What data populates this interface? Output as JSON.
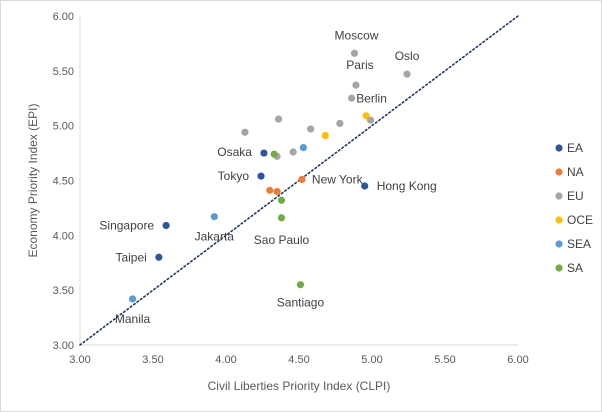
{
  "chart_data": {
    "type": "scatter",
    "xlabel": "Civil Liberties Priority Index (CLPI)",
    "ylabel": "Economy Priority Index (EPI)",
    "xlim": [
      3.0,
      6.0
    ],
    "ylim": [
      3.0,
      6.0
    ],
    "x_ticks": [
      "3.00",
      "3.50",
      "4.00",
      "4.50",
      "5.00",
      "5.50",
      "6.00"
    ],
    "y_ticks": [
      "3.00",
      "3.50",
      "4.00",
      "4.50",
      "5.00",
      "5.50",
      "6.00"
    ],
    "diagonal": {
      "from": [
        3.0,
        3.0
      ],
      "to": [
        6.0,
        6.0
      ],
      "style": "dotted",
      "color": "#1f3864"
    },
    "grid": false,
    "legend_position": "right",
    "series": [
      {
        "name": "EA",
        "color": "#2e5597",
        "points": [
          {
            "x": 3.54,
            "y": 3.8,
            "label": "Taipei"
          },
          {
            "x": 3.59,
            "y": 4.09,
            "label": "Singapore"
          },
          {
            "x": 4.24,
            "y": 4.54,
            "label": "Tokyo"
          },
          {
            "x": 4.26,
            "y": 4.75,
            "label": "Osaka"
          },
          {
            "x": 4.95,
            "y": 4.45,
            "label": "Hong Kong"
          }
        ]
      },
      {
        "name": "NA",
        "color": "#ed7d31",
        "points": [
          {
            "x": 4.3,
            "y": 4.41,
            "label": ""
          },
          {
            "x": 4.35,
            "y": 4.4,
            "label": ""
          },
          {
            "x": 4.52,
            "y": 4.51,
            "label": "New York"
          }
        ]
      },
      {
        "name": "EU",
        "color": "#a5a5a5",
        "points": [
          {
            "x": 4.13,
            "y": 4.94,
            "label": ""
          },
          {
            "x": 4.36,
            "y": 5.06,
            "label": ""
          },
          {
            "x": 4.35,
            "y": 4.72,
            "label": ""
          },
          {
            "x": 4.46,
            "y": 4.76,
            "label": ""
          },
          {
            "x": 4.58,
            "y": 4.97,
            "label": ""
          },
          {
            "x": 4.78,
            "y": 5.02,
            "label": ""
          },
          {
            "x": 4.86,
            "y": 5.25,
            "label": "Berlin"
          },
          {
            "x": 4.89,
            "y": 5.37,
            "label": "Paris"
          },
          {
            "x": 4.88,
            "y": 5.66,
            "label": "Moscow"
          },
          {
            "x": 4.99,
            "y": 5.05,
            "label": ""
          },
          {
            "x": 5.24,
            "y": 5.47,
            "label": "Oslo"
          }
        ]
      },
      {
        "name": "OCE",
        "color": "#ffc000",
        "points": [
          {
            "x": 4.68,
            "y": 4.91,
            "label": ""
          },
          {
            "x": 4.96,
            "y": 5.09,
            "label": ""
          }
        ]
      },
      {
        "name": "SEA",
        "color": "#5b9bd5",
        "points": [
          {
            "x": 3.36,
            "y": 3.42,
            "label": "Manila"
          },
          {
            "x": 3.92,
            "y": 4.17,
            "label": "Jakarta"
          },
          {
            "x": 4.53,
            "y": 4.8,
            "label": ""
          }
        ]
      },
      {
        "name": "SA",
        "color": "#70ad47",
        "points": [
          {
            "x": 4.33,
            "y": 4.74,
            "label": ""
          },
          {
            "x": 4.38,
            "y": 4.32,
            "label": ""
          },
          {
            "x": 4.38,
            "y": 4.16,
            "label": "Sao Paulo"
          },
          {
            "x": 4.51,
            "y": 3.55,
            "label": "Santiago"
          }
        ]
      }
    ]
  }
}
